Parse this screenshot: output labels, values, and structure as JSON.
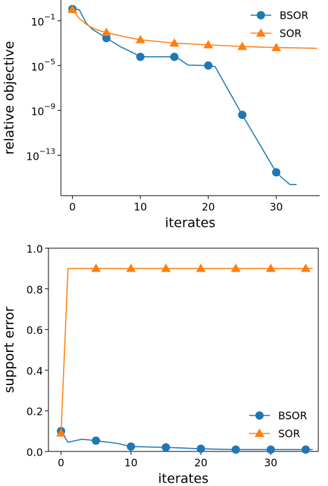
{
  "chart_data": [
    {
      "type": "line",
      "log_y": true,
      "xlabel": "iterates",
      "ylabel": "relative objective",
      "legend": "upper right",
      "xlim": [
        -1.7,
        36.4
      ],
      "xticks": [
        0,
        10,
        20,
        30
      ],
      "ylim": [
        2.5e-17,
        7
      ],
      "yticks": [
        {
          "value": 0.1,
          "label": "10^−1"
        },
        {
          "value": 1e-05,
          "label": "10^−5"
        },
        {
          "value": 1e-09,
          "label": "10^−9"
        },
        {
          "value": 1e-13,
          "label": "10^−13"
        }
      ],
      "series": [
        {
          "name": "BSOR",
          "color": "#1f77b4",
          "marker": "circle",
          "x": [
            0,
            1,
            2,
            3,
            5,
            7,
            9,
            10,
            15,
            16,
            17,
            20,
            21,
            25,
            30,
            31,
            32,
            33
          ],
          "values": [
            1.1,
            1.0,
            0.063,
            0.016,
            0.0028,
            0.0005,
            0.00013,
            6e-05,
            6e-05,
            3e-05,
            1.1e-05,
            1e-05,
            8e-06,
            4e-10,
            3e-15,
            8e-16,
            2.5e-16,
            2.5e-16
          ]
        },
        {
          "name": "SOR",
          "color": "#ff7f0e",
          "marker": "triangle",
          "x": [
            0,
            1,
            2,
            3,
            4,
            5,
            7,
            10,
            15,
            20,
            25,
            30,
            36
          ],
          "values": [
            1.0,
            0.16,
            0.05,
            0.022,
            0.0126,
            0.009,
            0.0045,
            0.002,
            0.001,
            0.0007,
            0.0005,
            0.0004,
            0.00035
          ]
        }
      ]
    },
    {
      "type": "line",
      "log_y": false,
      "xlabel": "iterates",
      "ylabel": "support error",
      "legend": "lower right",
      "xlim": [
        -1.8,
        36.8
      ],
      "xticks": [
        0,
        10,
        20,
        30
      ],
      "ylim": [
        0,
        1
      ],
      "yticks": [
        {
          "value": 0,
          "label": "0.0"
        },
        {
          "value": 0.2,
          "label": "0.2"
        },
        {
          "value": 0.4,
          "label": "0.4"
        },
        {
          "value": 0.6,
          "label": "0.6"
        },
        {
          "value": 0.8,
          "label": "0.8"
        },
        {
          "value": 1,
          "label": "1.0"
        }
      ],
      "series": [
        {
          "name": "BSOR",
          "color": "#1f77b4",
          "marker": "circle",
          "x": [
            0,
            1,
            3,
            5,
            8,
            10,
            15,
            20,
            25,
            30,
            35,
            36
          ],
          "values": [
            0.1,
            0.045,
            0.06,
            0.053,
            0.04,
            0.024,
            0.02,
            0.013,
            0.009,
            0.009,
            0.009,
            0.009
          ]
        },
        {
          "name": "SOR",
          "color": "#ff7f0e",
          "marker": "triangle",
          "x": [
            0,
            1,
            5,
            10,
            15,
            20,
            25,
            30,
            35,
            36
          ],
          "values": [
            0.09,
            0.9,
            0.9,
            0.9,
            0.9,
            0.9,
            0.9,
            0.9,
            0.9,
            0.9
          ]
        }
      ]
    }
  ]
}
